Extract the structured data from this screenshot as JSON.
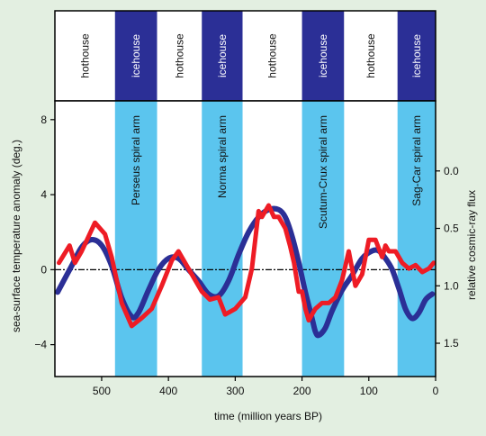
{
  "chart_data": {
    "type": "line",
    "xlabel": "time (million years BP)",
    "ylabel_left": "sea-surface temperature anomaly (deg.)",
    "ylabel_right": "relative cosmic-ray flux",
    "xlim": [
      570,
      0
    ],
    "ylim_left": [
      -5.7,
      9
    ],
    "ylim_right": [
      1.79,
      -0.61
    ],
    "x_ticks": [
      500,
      400,
      300,
      200,
      100,
      0
    ],
    "y_ticks_left": [
      -4,
      0,
      4,
      8
    ],
    "y_ticks_right": [
      0.0,
      0.5,
      1.0,
      1.5
    ],
    "y_tick_labels_right": [
      "0.0",
      "0.5",
      "1.0",
      "1.5"
    ],
    "zero_line": 0,
    "grid": false,
    "phases": [
      {
        "label": "hothouse",
        "start": 570,
        "end": 480,
        "kind": "hothouse"
      },
      {
        "label": "icehouse",
        "start": 480,
        "end": 417,
        "kind": "icehouse"
      },
      {
        "label": "hothouse",
        "start": 417,
        "end": 350,
        "kind": "hothouse"
      },
      {
        "label": "icehouse",
        "start": 350,
        "end": 289,
        "kind": "icehouse"
      },
      {
        "label": "hothouse",
        "start": 289,
        "end": 200,
        "kind": "hothouse"
      },
      {
        "label": "icehouse",
        "start": 200,
        "end": 137,
        "kind": "icehouse"
      },
      {
        "label": "hothouse",
        "start": 137,
        "end": 57,
        "kind": "hothouse"
      },
      {
        "label": "icehouse",
        "start": 57,
        "end": 0,
        "kind": "icehouse"
      }
    ],
    "spiral_arms": [
      {
        "label": "Perseus spiral arm",
        "start": 480,
        "end": 417
      },
      {
        "label": "Norma spiral arm",
        "start": 350,
        "end": 289
      },
      {
        "label": "Scutum-Crux spiral arm",
        "start": 200,
        "end": 137
      },
      {
        "label": "Sag-Car spiral arm",
        "start": 57,
        "end": 0
      }
    ],
    "series": [
      {
        "axis": "left",
        "color": "#2b2f96",
        "x": [
          566,
          545,
          530,
          515,
          500,
          485,
          470,
          455,
          445,
          430,
          415,
          400,
          385,
          370,
          355,
          340,
          325,
          310,
          295,
          280,
          265,
          250,
          235,
          225,
          215,
          205,
          195,
          185,
          180,
          175,
          165,
          155,
          140,
          125,
          110,
          95,
          85,
          75,
          65,
          55,
          45,
          35,
          25,
          15,
          5
        ],
        "values": [
          -1.2,
          0.2,
          1.2,
          1.6,
          1.3,
          0.2,
          -1.5,
          -2.5,
          -2.3,
          -1.1,
          0.0,
          0.6,
          0.6,
          0.0,
          -0.6,
          -1.3,
          -1.4,
          -0.6,
          0.8,
          2.0,
          2.8,
          3.2,
          3.2,
          2.8,
          1.8,
          0.4,
          -1.2,
          -2.6,
          -3.3,
          -3.5,
          -3.1,
          -2.2,
          -1.1,
          -0.3,
          0.6,
          1.0,
          1.0,
          0.6,
          0.0,
          -1.0,
          -2.1,
          -2.6,
          -2.3,
          -1.6,
          -1.3
        ]
      },
      {
        "axis": "right",
        "color": "#ee1c25",
        "x": [
          564,
          548,
          540,
          530,
          510,
          495,
          485,
          470,
          455,
          440,
          425,
          410,
          395,
          385,
          375,
          365,
          350,
          338,
          325,
          315,
          300,
          285,
          275,
          265,
          260,
          250,
          242,
          235,
          225,
          218,
          212,
          205,
          200,
          195,
          190,
          180,
          170,
          160,
          150,
          140,
          130,
          120,
          110,
          100,
          90,
          80,
          75,
          70,
          60,
          50,
          40,
          30,
          20,
          10,
          3
        ],
        "values": [
          0.8,
          0.65,
          0.8,
          0.7,
          0.45,
          0.55,
          0.75,
          1.15,
          1.35,
          1.28,
          1.2,
          1.0,
          0.78,
          0.7,
          0.8,
          0.9,
          1.05,
          1.12,
          1.1,
          1.25,
          1.2,
          1.1,
          0.85,
          0.35,
          0.4,
          0.3,
          0.4,
          0.4,
          0.5,
          0.65,
          0.8,
          1.05,
          1.05,
          1.2,
          1.3,
          1.2,
          1.15,
          1.15,
          1.1,
          0.95,
          0.7,
          1.0,
          0.9,
          0.6,
          0.6,
          0.75,
          0.65,
          0.7,
          0.7,
          0.8,
          0.85,
          0.82,
          0.88,
          0.85,
          0.8
        ]
      }
    ]
  }
}
